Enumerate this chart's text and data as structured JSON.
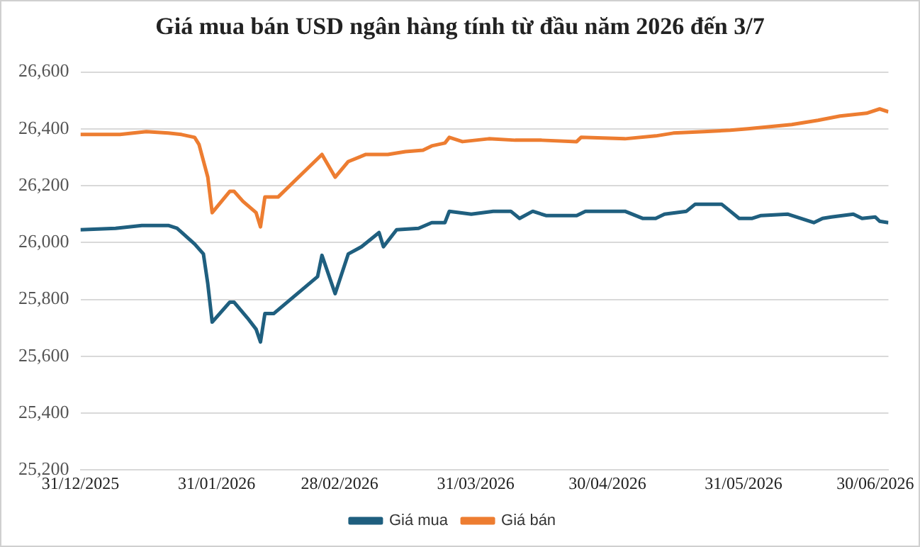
{
  "chart_data": {
    "type": "line",
    "title": "Giá mua bán USD ngân hàng tính từ đầu năm 2026 đến 3/7",
    "x": [
      "2025-12-31",
      "2026-01-08",
      "2026-01-11",
      "2026-01-14",
      "2026-01-20",
      "2026-01-22",
      "2026-01-26",
      "2026-01-28",
      "2026-01-29",
      "2026-01-30",
      "2026-02-03",
      "2026-02-04",
      "2026-02-07",
      "2026-02-09",
      "2026-02-10",
      "2026-02-11",
      "2026-02-13",
      "2026-02-23",
      "2026-02-24",
      "2026-02-27",
      "2026-03-02",
      "2026-03-05",
      "2026-03-09",
      "2026-03-10",
      "2026-03-13",
      "2026-03-18",
      "2026-03-21",
      "2026-03-24",
      "2026-03-25",
      "2026-03-30",
      "2026-04-04",
      "2026-04-08",
      "2026-04-10",
      "2026-04-13",
      "2026-04-16",
      "2026-04-23",
      "2026-04-25",
      "2026-05-04",
      "2026-05-08",
      "2026-05-11",
      "2026-05-13",
      "2026-05-18",
      "2026-05-20",
      "2026-05-26",
      "2026-05-28",
      "2026-05-30",
      "2026-06-02",
      "2026-06-04",
      "2026-06-10",
      "2026-06-16",
      "2026-06-18",
      "2026-06-20",
      "2026-06-25",
      "2026-06-27",
      "2026-06-30",
      "2026-07-01",
      "2026-07-03"
    ],
    "series": [
      {
        "name": "Giá mua",
        "color": "#1f5f7f",
        "values": [
          26045,
          26050,
          26055,
          26060,
          26060,
          26050,
          25995,
          25960,
          25855,
          25720,
          25790,
          25790,
          25735,
          25695,
          25650,
          25750,
          25750,
          25880,
          25955,
          25820,
          25960,
          25985,
          26035,
          25985,
          26045,
          26050,
          26070,
          26070,
          26110,
          26100,
          26110,
          26110,
          26085,
          26110,
          26095,
          26095,
          26110,
          26110,
          26085,
          26085,
          26100,
          26110,
          26135,
          26135,
          26110,
          26085,
          26085,
          26095,
          26100,
          26070,
          26085,
          26090,
          26100,
          26085,
          26090,
          26075,
          26070
        ]
      },
      {
        "name": "Giá bán",
        "color": "#ed7d31",
        "x": [
          "2025-12-31",
          "2026-01-09",
          "2026-01-15",
          "2026-01-20",
          "2026-01-23",
          "2026-01-26",
          "2026-01-27",
          "2026-01-29",
          "2026-01-30",
          "2026-02-03",
          "2026-02-04",
          "2026-02-06",
          "2026-02-09",
          "2026-02-10",
          "2026-02-11",
          "2026-02-14",
          "2026-02-24",
          "2026-02-27",
          "2026-03-02",
          "2026-03-06",
          "2026-03-11",
          "2026-03-15",
          "2026-03-19",
          "2026-03-21",
          "2026-03-24",
          "2026-03-25",
          "2026-03-28",
          "2026-04-03",
          "2026-04-09",
          "2026-04-15",
          "2026-04-23",
          "2026-04-24",
          "2026-05-04",
          "2026-05-11",
          "2026-05-15",
          "2026-05-22",
          "2026-05-28",
          "2026-06-01",
          "2026-06-11",
          "2026-06-17",
          "2026-06-22",
          "2026-06-28",
          "2026-07-01",
          "2026-07-03"
        ],
        "values": [
          26380,
          26380,
          26390,
          26385,
          26380,
          26370,
          26345,
          26230,
          26105,
          26180,
          26180,
          26145,
          26105,
          26055,
          26160,
          26160,
          26310,
          26230,
          26285,
          26310,
          26310,
          26320,
          26325,
          26340,
          26350,
          26370,
          26355,
          26365,
          26360,
          26360,
          26355,
          26370,
          26365,
          26375,
          26385,
          26390,
          26395,
          26400,
          26415,
          26430,
          26445,
          26455,
          26470,
          26460
        ]
      }
    ],
    "xlim": [
      "2025-12-31",
      "2026-07-03"
    ],
    "xticks": [
      {
        "value": "2025-12-31",
        "label": "31/12/2025"
      },
      {
        "value": "2026-01-31",
        "label": "31/01/2026"
      },
      {
        "value": "2026-02-28",
        "label": "28/02/2026"
      },
      {
        "value": "2026-03-31",
        "label": "31/03/2026"
      },
      {
        "value": "2026-04-30",
        "label": "30/04/2026"
      },
      {
        "value": "2026-05-31",
        "label": "31/05/2026"
      },
      {
        "value": "2026-06-30",
        "label": "30/06/2026"
      }
    ],
    "ylim": [
      25200,
      26600
    ],
    "yticks": [
      {
        "value": 25200,
        "label": "25,200"
      },
      {
        "value": 25400,
        "label": "25,400"
      },
      {
        "value": 25600,
        "label": "25,600"
      },
      {
        "value": 25800,
        "label": "25,800"
      },
      {
        "value": 26000,
        "label": "26,000"
      },
      {
        "value": 26200,
        "label": "26,200"
      },
      {
        "value": 26400,
        "label": "26,400"
      },
      {
        "value": 26600,
        "label": "26,600"
      }
    ],
    "grid": "y",
    "legend": "bottom",
    "marker": "none",
    "line_style": "solid"
  }
}
